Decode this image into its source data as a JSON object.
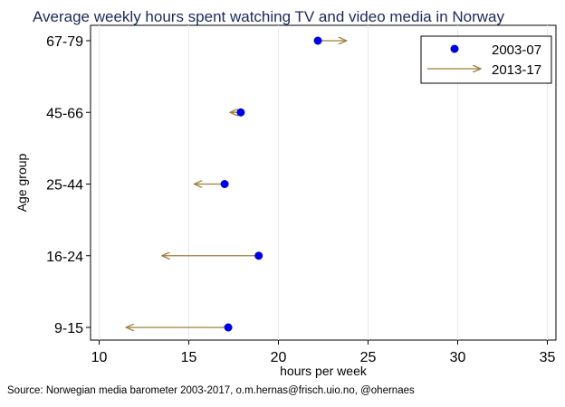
{
  "chart_data": {
    "type": "scatter",
    "title": "Average weekly hours spent watching TV and video media in Norway",
    "xlabel": "hours per week",
    "ylabel": "Age group",
    "xlim": [
      10,
      35
    ],
    "xticks": [
      10,
      15,
      20,
      25,
      30,
      35
    ],
    "categories": [
      "67-79",
      "45-66",
      "25-44",
      "16-24",
      "9-15"
    ],
    "series": [
      {
        "name": "2003-07",
        "marker": "dot",
        "color": "#0000e0",
        "values": [
          22.2,
          17.9,
          17.0,
          18.9,
          17.2
        ]
      },
      {
        "name": "2013-17",
        "marker": "arrow",
        "color": "#9e7e3e",
        "values": [
          23.8,
          17.3,
          15.3,
          13.5,
          11.5
        ]
      }
    ],
    "grid": true,
    "legend_position": "top-right",
    "source": "Source: Norwegian media barometer 2003-2017, o.m.hernas@frisch.uio.no, @ohernaes"
  }
}
